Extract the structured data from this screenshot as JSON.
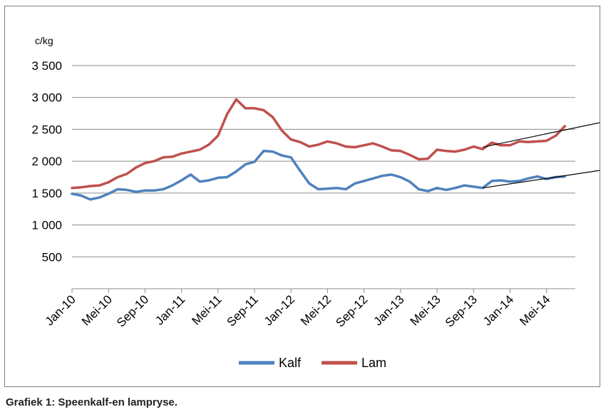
{
  "caption": "Grafiek 1: Speenkalf-en lampryse.",
  "chart_data": {
    "type": "line",
    "title": "",
    "ylabel": "c/kg",
    "xlabel": "",
    "ylim": [
      0,
      3500
    ],
    "yticks": [
      {
        "value": 500,
        "label": "500"
      },
      {
        "value": 1000,
        "label": "1 000"
      },
      {
        "value": 1500,
        "label": "1 500"
      },
      {
        "value": 2000,
        "label": "2 000"
      },
      {
        "value": 2500,
        "label": "2 500"
      },
      {
        "value": 3000,
        "label": "3 000"
      },
      {
        "value": 3500,
        "label": "3 500"
      }
    ],
    "grid": true,
    "legend_position": "bottom",
    "x_start": "Jan-10",
    "xticks": [
      {
        "index": 0,
        "label": "Jan-10"
      },
      {
        "index": 4,
        "label": "Mei-10"
      },
      {
        "index": 8,
        "label": "Sep-10"
      },
      {
        "index": 12,
        "label": "Jan-11"
      },
      {
        "index": 16,
        "label": "Mei-11"
      },
      {
        "index": 20,
        "label": "Sep-11"
      },
      {
        "index": 24,
        "label": "Jan-12"
      },
      {
        "index": 28,
        "label": "Mei-12"
      },
      {
        "index": 32,
        "label": "Sep-12"
      },
      {
        "index": 36,
        "label": "Jan-13"
      },
      {
        "index": 40,
        "label": "Mei-13"
      },
      {
        "index": 44,
        "label": "Sep-13"
      },
      {
        "index": 48,
        "label": "Jan-14"
      },
      {
        "index": 52,
        "label": "Mei-14"
      }
    ],
    "series": [
      {
        "name": "Kalf",
        "color": "#4f81bd",
        "values": [
          1490,
          1460,
          1400,
          1430,
          1490,
          1560,
          1550,
          1520,
          1540,
          1540,
          1560,
          1620,
          1700,
          1790,
          1680,
          1700,
          1740,
          1750,
          1840,
          1950,
          1990,
          2160,
          2150,
          2090,
          2060,
          1850,
          1650,
          1560,
          1570,
          1580,
          1560,
          1650,
          1690,
          1730,
          1770,
          1790,
          1750,
          1680,
          1560,
          1530,
          1580,
          1550,
          1580,
          1620,
          1600,
          1580,
          1690,
          1700,
          1680,
          1690,
          1730,
          1760,
          1720,
          1750,
          1760
        ]
      },
      {
        "name": "Lam",
        "color": "#c0504d",
        "values": [
          1580,
          1590,
          1610,
          1620,
          1670,
          1750,
          1800,
          1900,
          1970,
          2000,
          2060,
          2070,
          2120,
          2150,
          2180,
          2260,
          2400,
          2740,
          2970,
          2830,
          2830,
          2800,
          2690,
          2480,
          2340,
          2300,
          2230,
          2260,
          2310,
          2280,
          2230,
          2220,
          2250,
          2280,
          2230,
          2170,
          2160,
          2100,
          2030,
          2040,
          2180,
          2160,
          2150,
          2180,
          2230,
          2190,
          2290,
          2250,
          2250,
          2310,
          2300,
          2310,
          2320,
          2400,
          2550
        ]
      }
    ],
    "annotations": [
      {
        "type": "trend-arrow",
        "series": "Lam",
        "from": {
          "index": 45,
          "value": 2220
        },
        "to": {
          "index": 59,
          "value": 2640
        },
        "color": "#000000"
      },
      {
        "type": "trend-arrow",
        "series": "Kalf",
        "from": {
          "index": 45,
          "value": 1580
        },
        "to": {
          "index": 59,
          "value": 1880
        },
        "color": "#000000"
      }
    ]
  }
}
